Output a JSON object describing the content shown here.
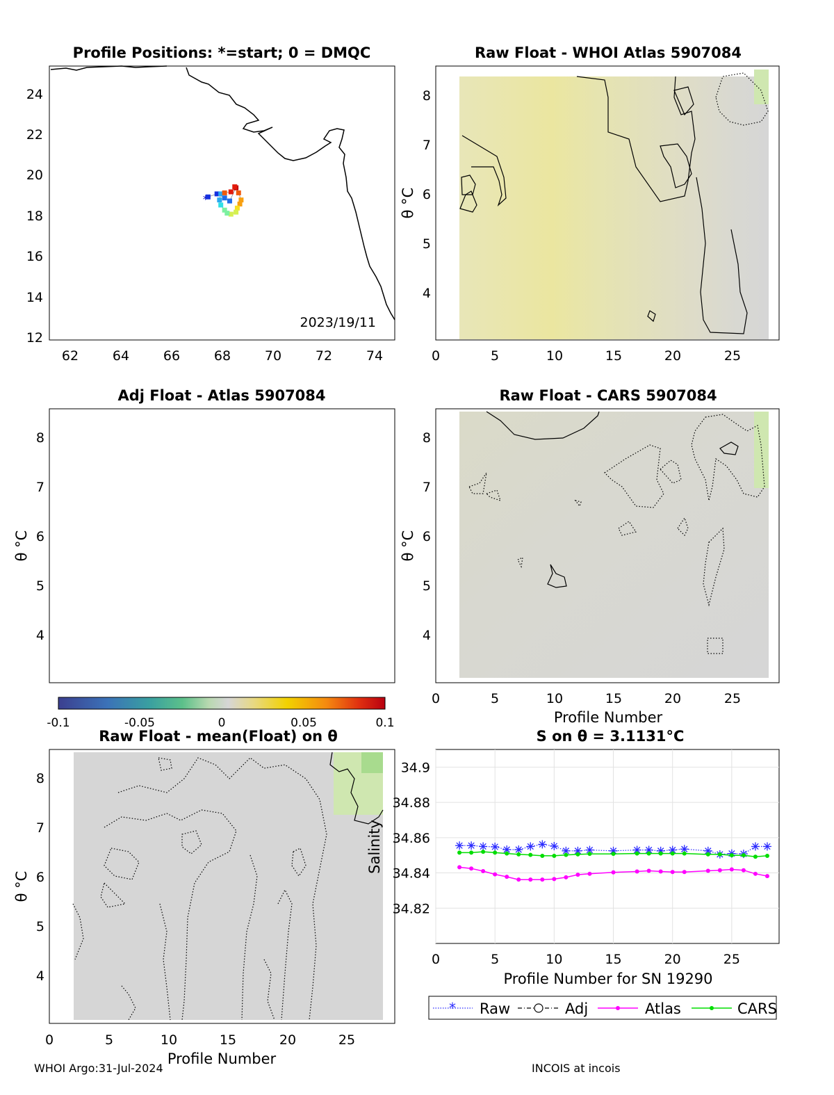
{
  "colors": {
    "raw": "#2a2aff",
    "adj": "#000000",
    "atlas": "#ff00ff",
    "cars": "#00dd00",
    "field_gray": "#d6d6d6",
    "field_yellow": "#e7e6a6",
    "field_green": "#cfe7b0"
  },
  "panels": {
    "map": {
      "title": "Profile Positions: *=start; 0 = DMQC",
      "date_label": "2023/19/11",
      "xticks": [
        "62",
        "64",
        "66",
        "68",
        "70",
        "72",
        "74"
      ],
      "yticks": [
        "12",
        "14",
        "16",
        "18",
        "20",
        "22",
        "24"
      ]
    },
    "whoi": {
      "title": "Raw Float - WHOI Atlas  5907084",
      "ylabel": "θ °C",
      "xticks": [
        "0",
        "5",
        "10",
        "15",
        "20",
        "25"
      ],
      "yticks": [
        "4",
        "5",
        "6",
        "7",
        "8"
      ],
      "icon": "contour-field"
    },
    "adj": {
      "title": "Adj Float - Atlas  5907084",
      "ylabel": "θ °C",
      "yticks": [
        "4",
        "5",
        "6",
        "7",
        "8"
      ]
    },
    "cars": {
      "title": "Raw Float - CARS  5907084",
      "ylabel": "θ °C",
      "xlabel": "Profile Number",
      "xticks": [
        "0",
        "5",
        "10",
        "15",
        "20",
        "25"
      ],
      "yticks": [
        "4",
        "5",
        "6",
        "7",
        "8"
      ],
      "icon": "contour-field"
    },
    "mean": {
      "title": "Raw Float - mean(Float) on θ",
      "ylabel": "θ °C",
      "xlabel": "Profile Number",
      "xticks": [
        "0",
        "5",
        "10",
        "15",
        "20",
        "25"
      ],
      "yticks": [
        "4",
        "5",
        "6",
        "7",
        "8"
      ],
      "icon": "contour-field"
    },
    "colorbar": {
      "ticks": [
        "-0.1",
        "-0.05",
        "0",
        "0.05",
        "0.1"
      ]
    }
  },
  "chart_data": [
    {
      "type": "line",
      "title": "S on θ = 3.1131°C",
      "xlabel": "Profile Number for SN 19290",
      "ylabel": "Salinity",
      "xlim": [
        0,
        29
      ],
      "ylim": [
        34.8,
        34.91
      ],
      "grid": true,
      "xticks": [
        "0",
        "5",
        "10",
        "15",
        "20",
        "25"
      ],
      "yticks": [
        "34.82",
        "34.84",
        "34.86",
        "34.88",
        "34.9"
      ],
      "legend_position": "bottom",
      "series": [
        {
          "name": "Raw",
          "marker": "asterisk",
          "x": [
            2,
            3,
            4,
            5,
            6,
            7,
            8,
            9,
            10,
            11,
            12,
            13,
            15,
            17,
            18,
            19,
            20,
            21,
            23,
            24,
            25,
            26,
            27,
            28
          ],
          "values": [
            34.8555,
            34.8555,
            34.855,
            34.8548,
            34.8532,
            34.8532,
            34.855,
            34.8562,
            34.8552,
            34.8525,
            34.8525,
            34.853,
            34.8525,
            34.853,
            34.853,
            34.8525,
            34.853,
            34.8535,
            34.8525,
            34.8505,
            34.851,
            34.8508,
            34.855,
            34.855
          ]
        },
        {
          "name": "Adj",
          "marker": "circle",
          "x": [],
          "values": []
        },
        {
          "name": "Atlas",
          "marker": "dot",
          "x": [
            2,
            3,
            4,
            5,
            6,
            7,
            8,
            9,
            10,
            11,
            12,
            13,
            15,
            17,
            18,
            19,
            20,
            21,
            23,
            24,
            25,
            26,
            27,
            28
          ],
          "values": [
            34.8432,
            34.8425,
            34.841,
            34.8392,
            34.8378,
            34.8362,
            34.8362,
            34.8362,
            34.8365,
            34.8375,
            34.839,
            34.8395,
            34.8403,
            34.8408,
            34.8412,
            34.8408,
            34.8405,
            34.8405,
            34.8412,
            34.8415,
            34.842,
            34.8415,
            34.8395,
            34.8382
          ]
        },
        {
          "name": "CARS",
          "marker": "dot",
          "x": [
            2,
            3,
            4,
            5,
            6,
            7,
            8,
            9,
            10,
            11,
            12,
            13,
            15,
            17,
            18,
            19,
            20,
            21,
            23,
            24,
            25,
            26,
            27,
            28
          ],
          "values": [
            34.8515,
            34.8515,
            34.852,
            34.8515,
            34.851,
            34.8505,
            34.8502,
            34.8497,
            34.8497,
            34.8502,
            34.8505,
            34.8508,
            34.8508,
            34.851,
            34.851,
            34.851,
            34.851,
            34.851,
            34.8505,
            34.8505,
            34.85,
            34.85,
            34.8492,
            34.8497
          ]
        }
      ]
    },
    {
      "type": "scatter",
      "title": "Profile Positions: *=start; 0 = DMQC",
      "xlim": [
        61.2,
        74.8
      ],
      "ylim": [
        11.8,
        25.3
      ],
      "series": [
        {
          "name": "",
          "x": [
            67.35,
            67.45,
            67.8,
            68.1,
            68.3,
            68.55,
            68.65,
            68.75,
            68.7,
            68.6,
            68.55,
            68.35,
            68.2,
            68.1,
            67.95,
            67.9,
            67.95,
            68.1,
            68.35,
            68.5
          ],
          "values": [
            18.75,
            18.85,
            19.0,
            18.8,
            18.65,
            19.3,
            19.05,
            18.7,
            18.5,
            18.3,
            18.1,
            18.0,
            18.05,
            18.2,
            18.45,
            18.7,
            19.0,
            19.05,
            19.1,
            19.35
          ]
        }
      ]
    }
  ],
  "footer": {
    "left": "WHOI Argo:31-Jul-2024",
    "right": "INCOIS at incois"
  }
}
